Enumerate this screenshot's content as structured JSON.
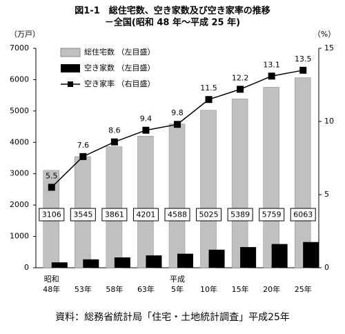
{
  "chart_data": {
    "type": "bar",
    "title": "図1-1　総住宅数、空き家数及び空き家率の推移",
    "subtitle": "－全国(昭和 48 年～平成 25 年)",
    "y_label": "（万戸）",
    "y2_label": "（%）",
    "source": "資料：総務省統計局「住宅・土地統計調査」平成25年",
    "categories": [
      [
        "昭和",
        "48年"
      ],
      [
        "53年"
      ],
      [
        "58年"
      ],
      [
        "63年"
      ],
      [
        "平成",
        "5年"
      ],
      [
        "10年"
      ],
      [
        "15年"
      ],
      [
        "20年"
      ],
      [
        "25年"
      ]
    ],
    "series": [
      {
        "name": "総住宅数 （左目盛）",
        "color": "#c0c0c0",
        "values": [
          3106,
          3545,
          3861,
          4201,
          4588,
          5025,
          5389,
          5759,
          6063
        ]
      },
      {
        "name": "空き家数 （左目盛）",
        "color": "#000000",
        "values": [
          172,
          268,
          330,
          394,
          448,
          576,
          659,
          757,
          820
        ]
      },
      {
        "name": "空き家率 （右目盛）",
        "color": "#000000",
        "axis": "y2",
        "type": "line",
        "values": [
          5.5,
          7.6,
          8.6,
          9.4,
          9.8,
          11.5,
          12.2,
          13.1,
          13.5
        ]
      }
    ],
    "ylim": [
      0,
      7000
    ],
    "yticks": [
      0,
      1000,
      2000,
      3000,
      4000,
      5000,
      6000,
      7000
    ],
    "y2lim": [
      0,
      15
    ],
    "y2ticks": [
      0,
      5,
      10,
      15
    ],
    "legend": "upper left"
  }
}
